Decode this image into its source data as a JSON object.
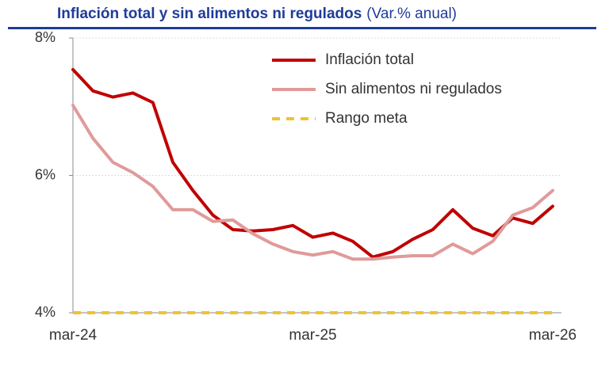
{
  "chart_data": {
    "type": "line",
    "title": "Inflación total y sin alimentos ni regulados",
    "subtitle": "(Var.% anual)",
    "categories": [
      "mar-24",
      null,
      null,
      null,
      null,
      null,
      null,
      null,
      null,
      null,
      null,
      null,
      "mar-25",
      null,
      null,
      null,
      null,
      null,
      null,
      null,
      null,
      null,
      null,
      null,
      "mar-26"
    ],
    "series": [
      {
        "name": "Inflación total",
        "color": "#c00000",
        "dash": false,
        "values": [
          7.54,
          7.23,
          7.14,
          7.2,
          7.06,
          6.19,
          5.78,
          5.42,
          5.21,
          5.19,
          5.21,
          5.27,
          5.1,
          5.16,
          5.04,
          4.81,
          4.89,
          5.07,
          5.21,
          5.5,
          5.23,
          5.12,
          5.38,
          5.3,
          5.55
        ]
      },
      {
        "name": "Sin alimentos ni regulados",
        "color": "#e09a9a",
        "dash": false,
        "values": [
          7.02,
          6.54,
          6.19,
          6.04,
          5.84,
          5.5,
          5.5,
          5.33,
          5.35,
          5.15,
          5.0,
          4.89,
          4.84,
          4.89,
          4.78,
          4.78,
          4.81,
          4.83,
          4.83,
          5.0,
          4.86,
          5.04,
          5.42,
          5.53,
          5.78
        ]
      },
      {
        "name": "Rango meta",
        "color": "#f2c12e",
        "dash": true,
        "values": [
          4,
          4,
          4,
          4,
          4,
          4,
          4,
          4,
          4,
          4,
          4,
          4,
          4,
          4,
          4,
          4,
          4,
          4,
          4,
          4,
          4,
          4,
          4,
          4,
          4
        ]
      }
    ],
    "ylim": [
      4,
      8
    ],
    "yticks": [
      {
        "value": 4,
        "label": "4%"
      },
      {
        "value": 6,
        "label": "6%"
      },
      {
        "value": 8,
        "label": "8%"
      }
    ],
    "grid": true,
    "legend": "top"
  }
}
